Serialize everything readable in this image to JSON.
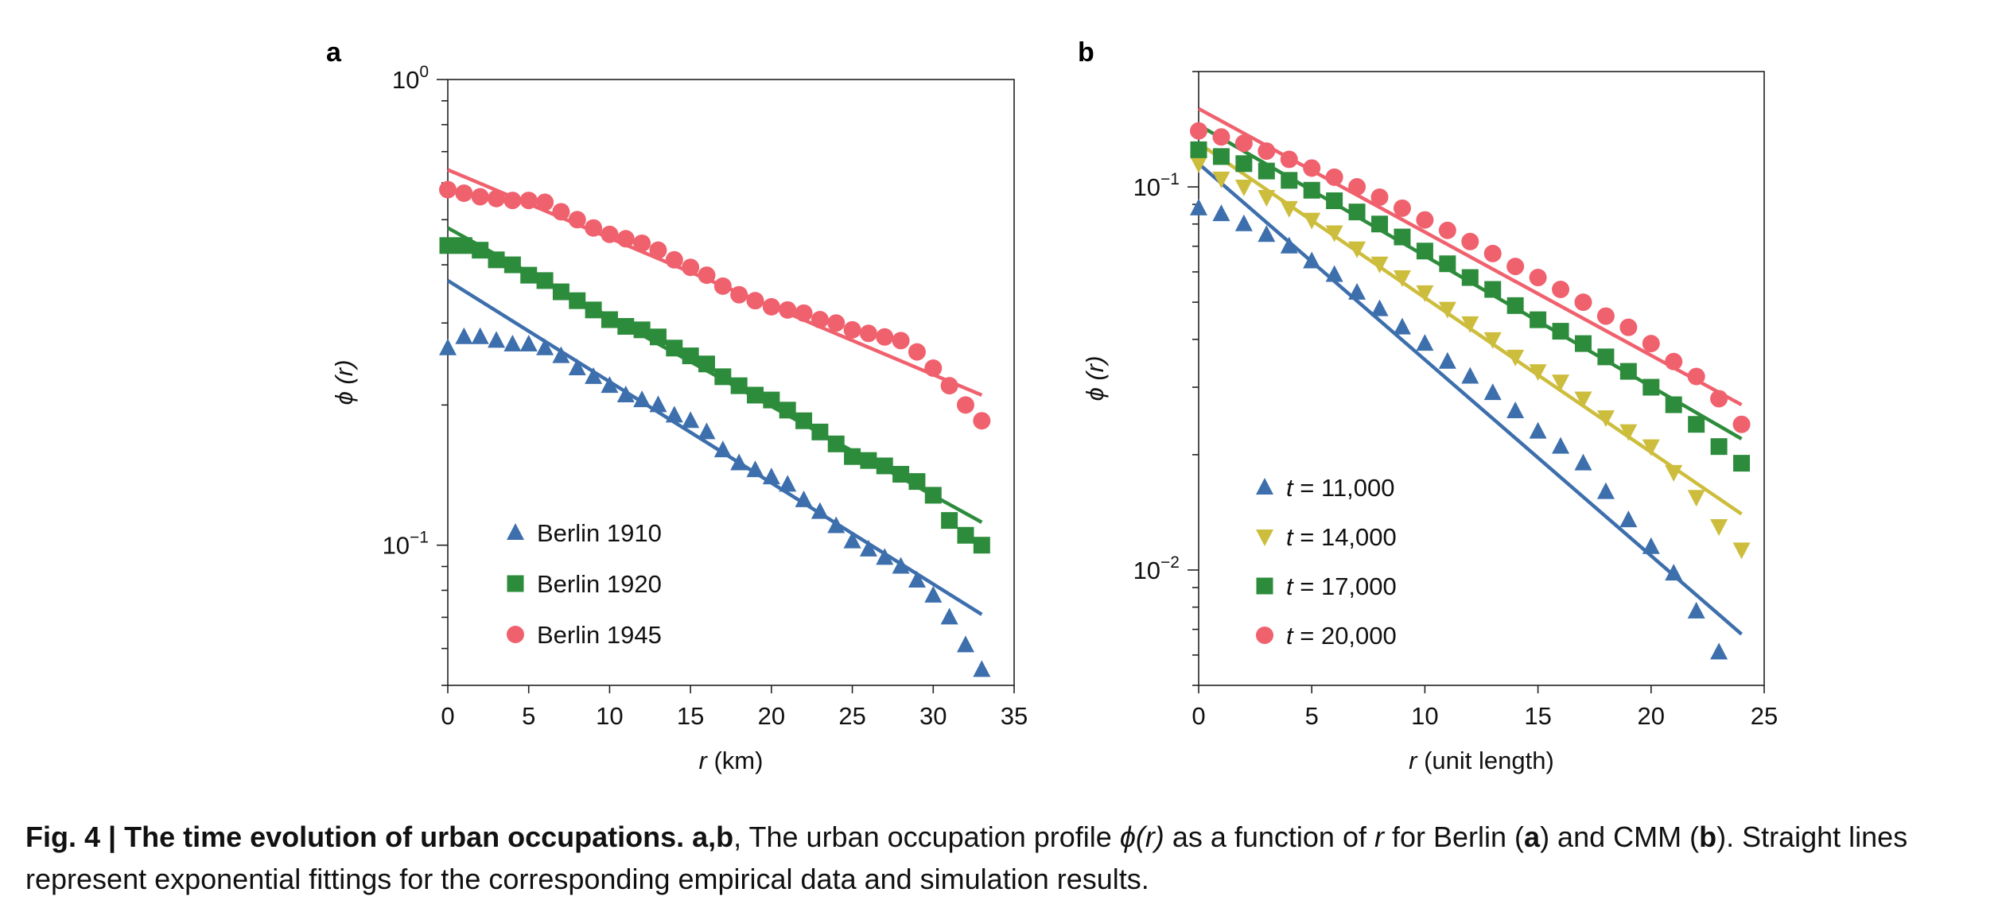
{
  "figure": {
    "panels": [
      {
        "letter": "a"
      },
      {
        "letter": "b"
      }
    ],
    "caption": {
      "fig_label": "Fig. 4 | The time evolution of urban occupations.",
      "refs": "a,b",
      "part1": ", The urban occupation profile ",
      "phi_r": "ϕ(r)",
      "part2": " as a function of ",
      "r": "r",
      "part3": " for Berlin (",
      "ref_a": "a",
      "part4": ") and CMM (",
      "ref_b": "b",
      "part5": "). Straight lines represent exponential fittings for the corresponding empirical data and simulation results."
    }
  },
  "chart_data": [
    {
      "type": "scatter",
      "panel": "a",
      "xlabel": "r (km)",
      "ylabel": "ϕ (r)",
      "xlim": [
        0,
        35
      ],
      "ylim": [
        0.05,
        1.0
      ],
      "y_scale": "log",
      "x_ticks": [
        0,
        5,
        10,
        15,
        20,
        25,
        30,
        35
      ],
      "y_tick_labels": [
        {
          "value": 1.0,
          "label": "10^0"
        },
        {
          "value": 0.1,
          "label": "10^-1"
        }
      ],
      "legend_position": "lower-left",
      "grid": false,
      "series": [
        {
          "name": "Berlin 1910",
          "marker": "triangle-up",
          "color": "#3d6fad",
          "x": [
            0,
            1,
            2,
            3,
            4,
            5,
            6,
            7,
            8,
            9,
            10,
            11,
            12,
            13,
            14,
            15,
            16,
            17,
            18,
            19,
            20,
            21,
            22,
            23,
            24,
            25,
            26,
            27,
            28,
            29,
            30,
            31,
            32,
            33
          ],
          "y": [
            0.265,
            0.28,
            0.28,
            0.275,
            0.27,
            0.27,
            0.265,
            0.255,
            0.24,
            0.23,
            0.22,
            0.21,
            0.205,
            0.2,
            0.19,
            0.185,
            0.175,
            0.16,
            0.15,
            0.145,
            0.14,
            0.135,
            0.125,
            0.118,
            0.11,
            0.102,
            0.098,
            0.094,
            0.09,
            0.084,
            0.078,
            0.07,
            0.061,
            0.054
          ],
          "fit": {
            "x": [
              0,
              33
            ],
            "y": [
              0.37,
              0.071
            ]
          }
        },
        {
          "name": "Berlin 1920",
          "marker": "square",
          "color": "#2d8c3c",
          "x": [
            0,
            1,
            2,
            3,
            4,
            5,
            6,
            7,
            8,
            9,
            10,
            11,
            12,
            13,
            14,
            15,
            16,
            17,
            18,
            19,
            20,
            21,
            22,
            23,
            24,
            25,
            26,
            27,
            28,
            29,
            30,
            31,
            32,
            33
          ],
          "y": [
            0.44,
            0.44,
            0.43,
            0.41,
            0.4,
            0.38,
            0.37,
            0.35,
            0.335,
            0.32,
            0.305,
            0.295,
            0.29,
            0.28,
            0.265,
            0.255,
            0.245,
            0.23,
            0.22,
            0.21,
            0.205,
            0.195,
            0.185,
            0.175,
            0.165,
            0.155,
            0.152,
            0.148,
            0.142,
            0.137,
            0.128,
            0.113,
            0.105,
            0.1
          ],
          "fit": {
            "x": [
              0,
              33
            ],
            "y": [
              0.48,
              0.112
            ]
          }
        },
        {
          "name": "Berlin 1945",
          "marker": "circle",
          "color": "#f0616e",
          "x": [
            0,
            1,
            2,
            3,
            4,
            5,
            6,
            7,
            8,
            9,
            10,
            11,
            12,
            13,
            14,
            15,
            16,
            17,
            18,
            19,
            20,
            21,
            22,
            23,
            24,
            25,
            26,
            27,
            28,
            29,
            30,
            31,
            32,
            33
          ],
          "y": [
            0.58,
            0.57,
            0.56,
            0.555,
            0.55,
            0.55,
            0.545,
            0.52,
            0.5,
            0.48,
            0.465,
            0.455,
            0.445,
            0.43,
            0.41,
            0.395,
            0.38,
            0.36,
            0.345,
            0.335,
            0.325,
            0.32,
            0.315,
            0.305,
            0.3,
            0.29,
            0.285,
            0.28,
            0.275,
            0.26,
            0.24,
            0.22,
            0.2,
            0.185
          ],
          "fit": {
            "x": [
              0,
              33
            ],
            "y": [
              0.64,
              0.21
            ]
          }
        }
      ]
    },
    {
      "type": "scatter",
      "panel": "b",
      "xlabel": "r (unit length)",
      "ylabel": "ϕ (r)",
      "xlim": [
        0,
        25
      ],
      "ylim": [
        0.005,
        0.2
      ],
      "y_scale": "log",
      "x_ticks": [
        0,
        5,
        10,
        15,
        20,
        25
      ],
      "y_tick_labels": [
        {
          "value": 0.1,
          "label": "10^-1"
        },
        {
          "value": 0.01,
          "label": "10^-2"
        }
      ],
      "legend_position": "lower-left",
      "grid": false,
      "series": [
        {
          "name": "t = 11,000",
          "name_var": "t",
          "name_rest": " = 11,000",
          "marker": "triangle-up",
          "color": "#3d6fad",
          "x": [
            0,
            1,
            2,
            3,
            4,
            5,
            6,
            7,
            8,
            9,
            10,
            11,
            12,
            13,
            14,
            15,
            16,
            17,
            18,
            19,
            20,
            21,
            22,
            23
          ],
          "y": [
            0.088,
            0.085,
            0.08,
            0.075,
            0.07,
            0.064,
            0.059,
            0.053,
            0.048,
            0.043,
            0.039,
            0.035,
            0.032,
            0.029,
            0.026,
            0.023,
            0.021,
            0.019,
            0.016,
            0.0135,
            0.0115,
            0.0098,
            0.0078,
            0.0061
          ],
          "fit": {
            "x": [
              0,
              24
            ],
            "y": [
              0.115,
              0.0068
            ]
          }
        },
        {
          "name": "t = 14,000",
          "name_var": "t",
          "name_rest": " = 14,000",
          "marker": "triangle-down",
          "color": "#cdbd3d",
          "x": [
            0,
            1,
            2,
            3,
            4,
            5,
            6,
            7,
            8,
            9,
            10,
            11,
            12,
            13,
            14,
            15,
            16,
            17,
            18,
            19,
            20,
            21,
            22,
            23,
            24
          ],
          "y": [
            0.115,
            0.105,
            0.1,
            0.094,
            0.088,
            0.082,
            0.076,
            0.069,
            0.063,
            0.058,
            0.053,
            0.048,
            0.044,
            0.04,
            0.036,
            0.033,
            0.031,
            0.028,
            0.025,
            0.023,
            0.021,
            0.018,
            0.0155,
            0.013,
            0.0113
          ],
          "fit": {
            "x": [
              0,
              24
            ],
            "y": [
              0.13,
              0.014
            ]
          }
        },
        {
          "name": "t = 17,000",
          "name_var": "t",
          "name_rest": " = 17,000",
          "marker": "square",
          "color": "#2d8c3c",
          "x": [
            0,
            1,
            2,
            3,
            4,
            5,
            6,
            7,
            8,
            9,
            10,
            11,
            12,
            13,
            14,
            15,
            16,
            17,
            18,
            19,
            20,
            21,
            22,
            23,
            24
          ],
          "y": [
            0.125,
            0.12,
            0.115,
            0.11,
            0.104,
            0.098,
            0.092,
            0.086,
            0.08,
            0.074,
            0.068,
            0.063,
            0.058,
            0.054,
            0.049,
            0.045,
            0.042,
            0.039,
            0.036,
            0.033,
            0.03,
            0.027,
            0.024,
            0.021,
            0.019
          ],
          "fit": {
            "x": [
              0,
              24
            ],
            "y": [
              0.145,
              0.022
            ]
          }
        },
        {
          "name": "t = 20,000",
          "name_var": "t",
          "name_rest": " = 20,000",
          "marker": "circle",
          "color": "#f0616e",
          "x": [
            0,
            1,
            2,
            3,
            4,
            5,
            6,
            7,
            8,
            9,
            10,
            11,
            12,
            13,
            14,
            15,
            16,
            17,
            18,
            19,
            20,
            21,
            22,
            23,
            24
          ],
          "y": [
            0.14,
            0.135,
            0.13,
            0.124,
            0.118,
            0.112,
            0.106,
            0.1,
            0.094,
            0.088,
            0.082,
            0.077,
            0.072,
            0.067,
            0.062,
            0.058,
            0.054,
            0.05,
            0.046,
            0.043,
            0.039,
            0.035,
            0.032,
            0.028,
            0.024
          ],
          "fit": {
            "x": [
              0,
              24
            ],
            "y": [
              0.16,
              0.027
            ]
          }
        }
      ]
    }
  ]
}
